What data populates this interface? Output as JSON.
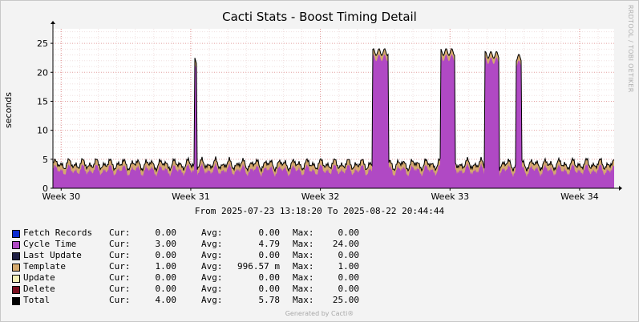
{
  "title": "Cacti Stats - Boost Timing Detail",
  "vertical_tag": "RRDTOOL / TOBI OETIKER",
  "y_axis_label": "seconds",
  "date_range": "From 2025-07-23 13:18:20 To 2025-08-22 20:44:44",
  "generated_text": "Generated by Cacti®",
  "colors": {
    "cycle_time": "#b049c4",
    "template": "#d4a96e",
    "total": "#000000",
    "plot_bg": "#ffffff",
    "grid": "#e08f8f"
  },
  "legend": [
    {
      "name": "Fetch Records",
      "color": "#0a2ad1",
      "cur_label": "Cur:",
      "cur": "0.00",
      "avg_label": "Avg:",
      "avg": "0.00",
      "max_label": "Max:",
      "max": "0.00"
    },
    {
      "name": "Cycle Time",
      "color": "#b049c4",
      "cur_label": "Cur:",
      "cur": "3.00",
      "avg_label": "Avg:",
      "avg": "4.79",
      "max_label": "Max:",
      "max": "24.00"
    },
    {
      "name": "Last Update",
      "color": "#1f1f44",
      "cur_label": "Cur:",
      "cur": "0.00",
      "avg_label": "Avg:",
      "avg": "0.00",
      "max_label": "Max:",
      "max": "0.00"
    },
    {
      "name": "Template",
      "color": "#d4a96e",
      "cur_label": "Cur:",
      "cur": "1.00",
      "avg_label": "Avg:",
      "avg": "996.57 m",
      "max_label": "Max:",
      "max": "1.00"
    },
    {
      "name": "Update",
      "color": "#f4f0b8",
      "cur_label": "Cur:",
      "cur": "0.00",
      "avg_label": "Avg:",
      "avg": "0.00",
      "max_label": "Max:",
      "max": "0.00"
    },
    {
      "name": "Delete",
      "color": "#7a1020",
      "cur_label": "Cur:",
      "cur": "0.00",
      "avg_label": "Avg:",
      "avg": "0.00",
      "max_label": "Max:",
      "max": "0.00"
    },
    {
      "name": "Total",
      "color": "#000000",
      "cur_label": "Cur:",
      "cur": "4.00",
      "avg_label": "Avg:",
      "avg": "5.78",
      "max_label": "Max:",
      "max": "25.00"
    }
  ],
  "chart_data": {
    "type": "area",
    "ylabel": "seconds",
    "ylim": [
      0,
      27.5
    ],
    "yticks": [
      0,
      5,
      10,
      15,
      20,
      25
    ],
    "xlim": [
      "2025-07-23 13:18:20",
      "2025-08-22 20:44:44"
    ],
    "xticks": [
      {
        "label": "Week 30",
        "date": "2025-07-24"
      },
      {
        "label": "Week 31",
        "date": "2025-07-31"
      },
      {
        "label": "Week 32",
        "date": "2025-08-07"
      },
      {
        "label": "Week 33",
        "date": "2025-08-14"
      },
      {
        "label": "Week 34",
        "date": "2025-08-21"
      }
    ],
    "grid": true,
    "stacked": true,
    "series": [
      {
        "name": "Cycle Time",
        "color": "#b049c4",
        "y_base": 3.5,
        "y_ripple": 1.0,
        "peaks": [
          {
            "start": "2025-07-31 04:30",
            "end": "2025-07-31 08:00",
            "value": 22
          },
          {
            "start": "2025-08-09 19:00",
            "end": "2025-08-10 16:00",
            "value": 23.5
          },
          {
            "start": "2025-08-13 12:00",
            "end": "2025-08-14 06:00",
            "value": 23.5
          },
          {
            "start": "2025-08-15 21:00",
            "end": "2025-08-16 16:00",
            "value": 23
          },
          {
            "start": "2025-08-17 13:00",
            "end": "2025-08-17 21:00",
            "value": 22.5
          }
        ]
      },
      {
        "name": "Template",
        "color": "#d4a96e",
        "value": 1.0
      },
      {
        "name": "Total",
        "color": "#000000",
        "current": 4.0,
        "average": 5.78,
        "max": 25.0
      }
    ]
  }
}
